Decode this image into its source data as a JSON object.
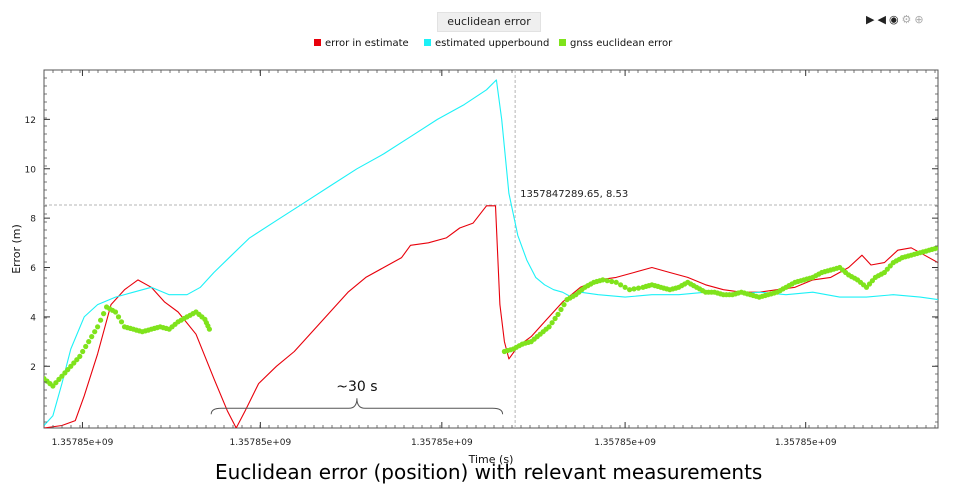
{
  "title": "euclidean error",
  "toolbar": {
    "icons": [
      "play-icon",
      "rewind-icon",
      "record-icon",
      "settings-icon",
      "zoom-icon"
    ]
  },
  "caption": "Euclidean error (position) with relevant measurements",
  "hover_readout": "1357847289.65, 8.53",
  "annotation": "~30 s",
  "colors": {
    "error_in_estimate": "#e8000b",
    "estimated_upperbound": "#1cf1f7",
    "gnss_euclidean_error": "#7fe31c"
  },
  "chart_data": {
    "type": "line",
    "title": "euclidean error",
    "xlabel": "Time (s)",
    "ylabel": "Error (m)",
    "xlim": [
      0,
      100
    ],
    "ylim": [
      -0.5,
      14
    ],
    "x_tick_positions": [
      4.3,
      24.2,
      44.5,
      65.0,
      85.2
    ],
    "x_tick_labels": [
      "1.35785e+09",
      "1.35785e+09",
      "1.35785e+09",
      "1.35785e+09",
      "1.35785e+09"
    ],
    "y_ticks": [
      2,
      4,
      6,
      8,
      10,
      12
    ],
    "legend_position": "top",
    "grid": false,
    "crosshair": {
      "x": 52.7,
      "y": 8.53
    },
    "series": [
      {
        "name": "error in estimate",
        "color": "#e8000b",
        "style": "line",
        "points": [
          [
            0,
            -0.5
          ],
          [
            2,
            -0.4
          ],
          [
            3.5,
            -0.2
          ],
          [
            4.5,
            0.8
          ],
          [
            6,
            2.5
          ],
          [
            7.5,
            4.5
          ],
          [
            9,
            5.1
          ],
          [
            10.5,
            5.5
          ],
          [
            12,
            5.2
          ],
          [
            13.5,
            4.6
          ],
          [
            15,
            4.2
          ],
          [
            17,
            3.3
          ],
          [
            19,
            1.5
          ],
          [
            20.5,
            0.2
          ],
          [
            21.5,
            -0.5
          ],
          [
            22.5,
            0.2
          ],
          [
            24,
            1.3
          ],
          [
            26,
            2.0
          ],
          [
            28,
            2.6
          ],
          [
            30,
            3.4
          ],
          [
            32,
            4.2
          ],
          [
            34,
            5.0
          ],
          [
            36,
            5.6
          ],
          [
            38,
            6.0
          ],
          [
            40,
            6.4
          ],
          [
            41,
            6.9
          ],
          [
            43,
            7.0
          ],
          [
            45,
            7.2
          ],
          [
            46.5,
            7.6
          ],
          [
            48,
            7.8
          ],
          [
            49.5,
            8.5
          ],
          [
            50.5,
            8.5
          ],
          [
            51,
            4.5
          ],
          [
            51.5,
            3.0
          ],
          [
            52,
            2.3
          ],
          [
            53,
            2.8
          ],
          [
            54.5,
            3.2
          ],
          [
            56,
            3.8
          ],
          [
            58,
            4.6
          ],
          [
            60,
            5.2
          ],
          [
            62,
            5.5
          ],
          [
            64,
            5.6
          ],
          [
            66,
            5.8
          ],
          [
            68,
            6.0
          ],
          [
            70,
            5.8
          ],
          [
            72,
            5.6
          ],
          [
            74,
            5.3
          ],
          [
            76,
            5.1
          ],
          [
            78,
            5.0
          ],
          [
            80,
            5.0
          ],
          [
            82,
            5.1
          ],
          [
            84,
            5.2
          ],
          [
            86,
            5.5
          ],
          [
            88,
            5.6
          ],
          [
            90,
            6.0
          ],
          [
            91.5,
            6.5
          ],
          [
            92.5,
            6.1
          ],
          [
            94,
            6.2
          ],
          [
            95.5,
            6.7
          ],
          [
            97,
            6.8
          ],
          [
            98.5,
            6.5
          ],
          [
            100,
            6.2
          ]
        ]
      },
      {
        "name": "estimated upperbound",
        "color": "#1cf1f7",
        "style": "line",
        "points": [
          [
            0,
            -0.4
          ],
          [
            1,
            0.0
          ],
          [
            2,
            1.3
          ],
          [
            3,
            2.7
          ],
          [
            4.5,
            4.0
          ],
          [
            6,
            4.5
          ],
          [
            8,
            4.8
          ],
          [
            10,
            5.0
          ],
          [
            12,
            5.2
          ],
          [
            14,
            4.9
          ],
          [
            16,
            4.9
          ],
          [
            17.5,
            5.2
          ],
          [
            19,
            5.8
          ],
          [
            21,
            6.5
          ],
          [
            23,
            7.2
          ],
          [
            26,
            7.9
          ],
          [
            29,
            8.6
          ],
          [
            32,
            9.3
          ],
          [
            35,
            10.0
          ],
          [
            38,
            10.6
          ],
          [
            41,
            11.3
          ],
          [
            44,
            12.0
          ],
          [
            47,
            12.6
          ],
          [
            49.5,
            13.2
          ],
          [
            50.6,
            13.6
          ],
          [
            51.2,
            12.0
          ],
          [
            52,
            9.0
          ],
          [
            53,
            7.3
          ],
          [
            54,
            6.3
          ],
          [
            55,
            5.6
          ],
          [
            56,
            5.3
          ],
          [
            57,
            5.1
          ],
          [
            58,
            5.0
          ],
          [
            59,
            4.8
          ],
          [
            60,
            5.0
          ],
          [
            62,
            4.9
          ],
          [
            65,
            4.8
          ],
          [
            68,
            4.9
          ],
          [
            71,
            4.9
          ],
          [
            74,
            5.0
          ],
          [
            77,
            4.9
          ],
          [
            80,
            5.0
          ],
          [
            83,
            4.9
          ],
          [
            86,
            5.0
          ],
          [
            89,
            4.8
          ],
          [
            92,
            4.8
          ],
          [
            95,
            4.9
          ],
          [
            98,
            4.8
          ],
          [
            100,
            4.7
          ]
        ]
      },
      {
        "name": "gnss euclidean error",
        "color": "#7fe31c",
        "style": "scatter",
        "points": [
          [
            0,
            1.5
          ],
          [
            1,
            1.2
          ],
          [
            2,
            1.6
          ],
          [
            3,
            2.0
          ],
          [
            4,
            2.4
          ],
          [
            5,
            3.0
          ],
          [
            6,
            3.6
          ],
          [
            7,
            4.4
          ],
          [
            8,
            4.2
          ],
          [
            9,
            3.6
          ],
          [
            10,
            3.5
          ],
          [
            11,
            3.4
          ],
          [
            12,
            3.5
          ],
          [
            13,
            3.6
          ],
          [
            14,
            3.5
          ],
          [
            15,
            3.8
          ],
          [
            16,
            4.0
          ],
          [
            17,
            4.2
          ],
          [
            18,
            3.9
          ],
          [
            18.5,
            3.5
          ],
          [
            51.5,
            2.6
          ],
          [
            52.5,
            2.7
          ],
          [
            53.5,
            2.9
          ],
          [
            54.5,
            3.0
          ],
          [
            55.5,
            3.3
          ],
          [
            56.5,
            3.6
          ],
          [
            57.5,
            4.1
          ],
          [
            58.5,
            4.7
          ],
          [
            59.5,
            4.9
          ],
          [
            60.5,
            5.2
          ],
          [
            61.5,
            5.4
          ],
          [
            62.5,
            5.5
          ],
          [
            64,
            5.4
          ],
          [
            65.5,
            5.1
          ],
          [
            67,
            5.2
          ],
          [
            68,
            5.3
          ],
          [
            69,
            5.2
          ],
          [
            70,
            5.1
          ],
          [
            71,
            5.2
          ],
          [
            72,
            5.4
          ],
          [
            73,
            5.2
          ],
          [
            74,
            5.0
          ],
          [
            75,
            5.0
          ],
          [
            76,
            4.9
          ],
          [
            77,
            4.9
          ],
          [
            78,
            5.0
          ],
          [
            79,
            4.9
          ],
          [
            80,
            4.8
          ],
          [
            81,
            4.9
          ],
          [
            82,
            5.0
          ],
          [
            83,
            5.2
          ],
          [
            84,
            5.4
          ],
          [
            85,
            5.5
          ],
          [
            86,
            5.6
          ],
          [
            87,
            5.8
          ],
          [
            88,
            5.9
          ],
          [
            89,
            6.0
          ],
          [
            90,
            5.7
          ],
          [
            91,
            5.5
          ],
          [
            92,
            5.2
          ],
          [
            93,
            5.6
          ],
          [
            94,
            5.8
          ],
          [
            95,
            6.2
          ],
          [
            96,
            6.4
          ],
          [
            97,
            6.5
          ],
          [
            98,
            6.6
          ],
          [
            99,
            6.7
          ],
          [
            100,
            6.8
          ]
        ]
      }
    ]
  }
}
